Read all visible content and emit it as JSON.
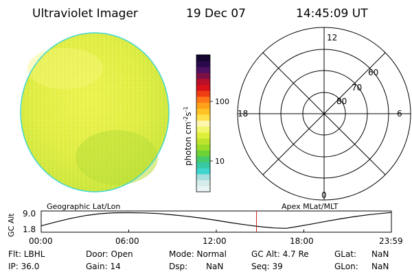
{
  "header": {
    "instrument": "Ultraviolet Imager",
    "date": "19 Dec 07",
    "time": "14:45:09 UT"
  },
  "colorbar": {
    "label_main": "photon cm",
    "label_sup1": "-2",
    "label_mid": "s",
    "label_sup2": "-1",
    "tick_high": "100",
    "tick_low": "10",
    "colors": [
      "#e9f4f4",
      "#d6eceb",
      "#a7dfde",
      "#3fd6cf",
      "#38c9a3",
      "#45c96a",
      "#6cd236",
      "#99dd2a",
      "#bfe42e",
      "#dff03c",
      "#f2f66c",
      "#fff7b0",
      "#ffe04a",
      "#ffc326",
      "#ffa21a",
      "#ff7818",
      "#f03e14",
      "#d81218",
      "#b8102a",
      "#7a1045",
      "#4e1060",
      "#2a0a4a",
      "#14062e"
    ]
  },
  "polar_plot": {
    "mlt_top": "12",
    "mlt_bottom": "0",
    "mlt_left": "18",
    "mlt_right": "6",
    "lat_60": "60",
    "lat_70": "70",
    "lat_80": "80"
  },
  "timeline": {
    "left_title": "Geographic Lat/Lon",
    "right_title": "Apex MLat/MLT",
    "yaxis_label": "GC Alt",
    "y_max_label": "9.0",
    "y_min_label": "1.8",
    "x_ticks": [
      "00:00",
      "06:00",
      "12:00",
      "18:00",
      "23:59"
    ]
  },
  "chart_data": {
    "type": "line",
    "xlabel": "",
    "ylabel": "GC Alt",
    "x_ticks": [
      "00:00",
      "06:00",
      "12:00",
      "18:00",
      "23:59"
    ],
    "ylim": [
      1.8,
      9.0
    ],
    "series": [
      {
        "x": [
          0,
          1,
          2,
          3,
          4,
          5,
          6,
          7,
          8,
          9,
          10,
          11,
          12,
          13,
          14,
          15,
          16,
          16.8,
          17.5,
          18.5,
          19.5,
          20.5,
          21.5,
          22.5,
          23.98
        ],
        "values": [
          2.8,
          4.6,
          6.3,
          7.6,
          8.5,
          8.95,
          9.0,
          8.9,
          8.6,
          8.0,
          7.3,
          6.4,
          5.4,
          4.3,
          3.3,
          2.4,
          1.8,
          1.65,
          2.4,
          3.6,
          4.9,
          6.1,
          7.2,
          8.1,
          9.1
        ]
      }
    ],
    "cursor_time": "14:45:09"
  },
  "footer": {
    "flt": "Flt: LBHL",
    "ip": "IP: 36.0",
    "door": "Door: Open",
    "gain": "Gain: 14",
    "mode": "Mode: Normal",
    "dsp_label": "Dsp:",
    "dsp_value": "NaN",
    "gc_alt": "GC Alt: 4.7 Re",
    "seq": "Seq: 39",
    "glat_label": "GLat:",
    "glat_value": "NaN",
    "glon_label": "GLon:",
    "glon_value": "NaN"
  },
  "colors": {
    "cursor": "#d02020",
    "disk_base": "#e6ef48",
    "disk_edge": "#3fd6cf"
  }
}
